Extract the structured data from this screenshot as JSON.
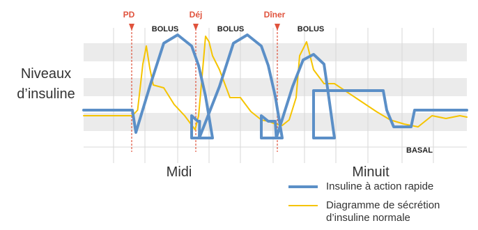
{
  "chart_data": {
    "type": "line",
    "ylabel": "Niveaux d’insuline",
    "x_ticks": [
      "Midi",
      "Minuit"
    ],
    "meals": [
      "PD",
      "Déj",
      "Dîner"
    ],
    "bolus_labels": [
      "BOLUS",
      "BOLUS",
      "BOLUS"
    ],
    "basal_label": "BASAL",
    "grid": true,
    "legend_position": "bottom-right",
    "series": [
      {
        "name": "Insuline à action rapide",
        "color": "#5b8fc7",
        "points": [
          [
            0,
            2.0
          ],
          [
            14,
            2.0
          ],
          [
            15,
            0.4
          ],
          [
            19,
            3.7
          ],
          [
            23,
            6.8
          ],
          [
            27,
            7.4
          ],
          [
            31,
            6.6
          ],
          [
            33,
            5.2
          ],
          [
            35,
            3.0
          ],
          [
            37,
            0
          ],
          [
            31,
            0
          ],
          [
            31,
            1.6
          ],
          [
            32.8,
            1.2
          ],
          [
            33.3,
            1.2
          ],
          [
            33.2,
            0
          ],
          [
            39,
            3.7
          ],
          [
            43,
            6.8
          ],
          [
            47,
            7.4
          ],
          [
            51,
            6.6
          ],
          [
            53,
            5.2
          ],
          [
            55,
            3.0
          ],
          [
            57,
            0
          ],
          [
            51,
            0
          ],
          [
            51,
            1.6
          ],
          [
            53,
            1.2
          ],
          [
            55,
            1.2
          ],
          [
            55.3,
            0
          ],
          [
            60,
            3.7
          ],
          [
            63,
            5.6
          ],
          [
            66,
            6.0
          ],
          [
            69,
            5.3
          ],
          [
            70,
            3.6
          ],
          [
            72,
            0
          ],
          [
            66,
            0
          ],
          [
            66,
            3.4
          ],
          [
            77,
            3.4
          ],
          [
            86,
            3.4
          ],
          [
            87,
            2.0
          ],
          [
            89,
            0.8
          ],
          [
            94,
            0.8
          ],
          [
            95,
            2.0
          ],
          [
            110,
            2.0
          ]
        ]
      },
      {
        "name": "Diagramme de sécrétion d’insuline normale",
        "color": "#f5c400",
        "points": [
          [
            0,
            1.6
          ],
          [
            14,
            1.6
          ],
          [
            15.5,
            2.0
          ],
          [
            17,
            5.3
          ],
          [
            18,
            6.6
          ],
          [
            19,
            5.0
          ],
          [
            20,
            3.8
          ],
          [
            23,
            3.6
          ],
          [
            26,
            2.4
          ],
          [
            29,
            1.6
          ],
          [
            32,
            0.6
          ],
          [
            33,
            1.6
          ],
          [
            34,
            4.4
          ],
          [
            35,
            7.3
          ],
          [
            36,
            6.9
          ],
          [
            37,
            5.9
          ],
          [
            39,
            4.9
          ],
          [
            42,
            2.9
          ],
          [
            45,
            2.9
          ],
          [
            48,
            1.9
          ],
          [
            51,
            1.3
          ],
          [
            53,
            1.2
          ],
          [
            55,
            1.0
          ],
          [
            57,
            0.9
          ],
          [
            59,
            1.3
          ],
          [
            61,
            2.9
          ],
          [
            62,
            5.9
          ],
          [
            64,
            6.9
          ],
          [
            66,
            4.9
          ],
          [
            69,
            3.9
          ],
          [
            72,
            3.9
          ],
          [
            75,
            3.4
          ],
          [
            78,
            2.9
          ],
          [
            81,
            2.4
          ],
          [
            84,
            1.9
          ],
          [
            88,
            1.3
          ],
          [
            92,
            1.0
          ],
          [
            96,
            0.8
          ],
          [
            100,
            1.6
          ],
          [
            104,
            1.4
          ],
          [
            108,
            1.6
          ],
          [
            110,
            1.5
          ]
        ]
      }
    ]
  }
}
